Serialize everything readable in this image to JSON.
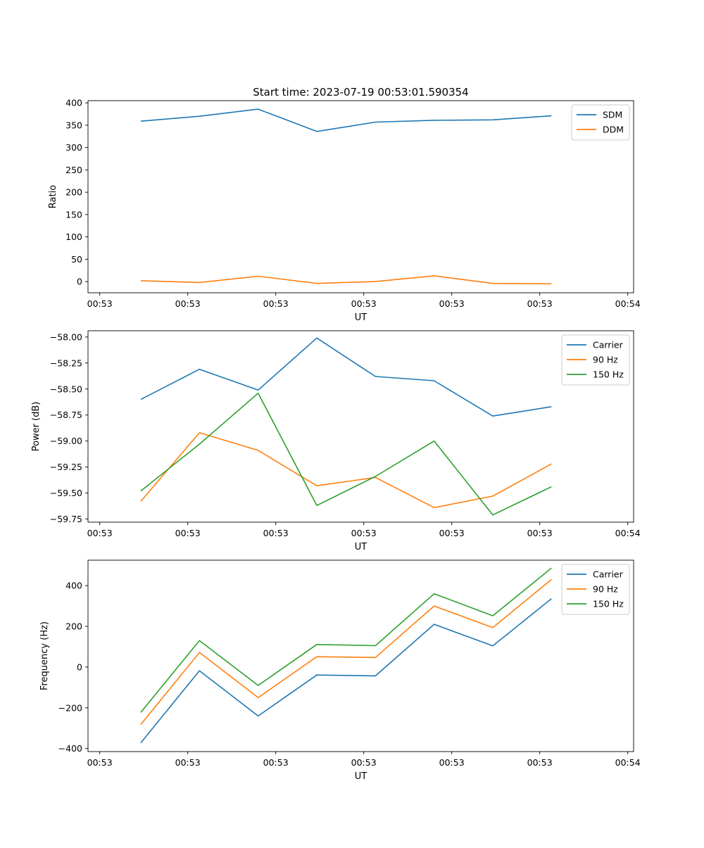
{
  "figure": {
    "title": "Start time: 2023-07-19 00:53:01.590354"
  },
  "chart_data": [
    {
      "type": "line",
      "title": "Start time: 2023-07-19 00:53:01.590354",
      "xlabel": "UT",
      "ylabel": "Ratio",
      "xlim": [
        -0.4,
        8.9
      ],
      "ylim": [
        -25,
        405
      ],
      "xticks": [
        -0.2,
        1.3,
        2.8,
        4.3,
        5.8,
        7.3,
        8.8
      ],
      "xtick_labels": [
        "00:53",
        "00:53",
        "00:53",
        "00:53",
        "00:53",
        "00:53",
        "00:54"
      ],
      "yticks": [
        0,
        50,
        100,
        150,
        200,
        250,
        300,
        350,
        400
      ],
      "ytick_labels": [
        "0",
        "50",
        "100",
        "150",
        "200",
        "250",
        "300",
        "350",
        "400"
      ],
      "x": [
        0.5,
        1.5,
        2.5,
        3.5,
        4.5,
        5.5,
        6.5,
        7.5
      ],
      "legend": "top-right",
      "series": [
        {
          "name": "SDM",
          "color": "#1f77b4",
          "values": [
            359,
            370,
            386,
            336,
            357,
            361,
            362,
            371
          ]
        },
        {
          "name": "DDM",
          "color": "#ff7f0e",
          "values": [
            2,
            -2,
            12,
            -4,
            0,
            13,
            -4,
            -5
          ]
        }
      ]
    },
    {
      "type": "line",
      "xlabel": "UT",
      "ylabel": "Power (dB)",
      "xlim": [
        -0.4,
        8.9
      ],
      "ylim": [
        -59.78,
        -57.94
      ],
      "xticks": [
        -0.2,
        1.3,
        2.8,
        4.3,
        5.8,
        7.3,
        8.8
      ],
      "xtick_labels": [
        "00:53",
        "00:53",
        "00:53",
        "00:53",
        "00:53",
        "00:53",
        "00:54"
      ],
      "yticks": [
        -59.75,
        -59.5,
        -59.25,
        -59.0,
        -58.75,
        -58.5,
        -58.25,
        -58.0
      ],
      "ytick_labels": [
        "−59.75",
        "−59.50",
        "−59.25",
        "−59.00",
        "−58.75",
        "−58.50",
        "−58.25",
        "−58.00"
      ],
      "x": [
        0.5,
        1.5,
        2.5,
        3.5,
        4.5,
        5.5,
        6.5,
        7.5
      ],
      "legend": "top-right",
      "series": [
        {
          "name": "Carrier",
          "color": "#1f77b4",
          "values": [
            -58.6,
            -58.31,
            -58.51,
            -58.01,
            -58.38,
            -58.42,
            -58.76,
            -58.67
          ]
        },
        {
          "name": "90 Hz",
          "color": "#ff7f0e",
          "values": [
            -59.58,
            -58.92,
            -59.09,
            -59.43,
            -59.35,
            -59.64,
            -59.53,
            -59.22
          ]
        },
        {
          "name": "150 Hz",
          "color": "#2ca02c",
          "values": [
            -59.48,
            -59.03,
            -58.54,
            -59.62,
            -59.34,
            -59.0,
            -59.71,
            -59.44
          ]
        }
      ]
    },
    {
      "type": "line",
      "xlabel": "UT",
      "ylabel": "Frequency (Hz)",
      "xlim": [
        -0.4,
        8.9
      ],
      "ylim": [
        -415,
        525
      ],
      "xticks": [
        -0.2,
        1.3,
        2.8,
        4.3,
        5.8,
        7.3,
        8.8
      ],
      "xtick_labels": [
        "00:53",
        "00:53",
        "00:53",
        "00:53",
        "00:53",
        "00:53",
        "00:54"
      ],
      "yticks": [
        -400,
        -200,
        0,
        200,
        400
      ],
      "ytick_labels": [
        "−400",
        "−200",
        "0",
        "200",
        "400"
      ],
      "x": [
        0.5,
        1.5,
        2.5,
        3.5,
        4.5,
        5.5,
        6.5,
        7.5
      ],
      "legend": "top-right",
      "series": [
        {
          "name": "Carrier",
          "color": "#1f77b4",
          "values": [
            -372,
            -18,
            -240,
            -39,
            -43,
            210,
            104,
            336
          ]
        },
        {
          "name": "90 Hz",
          "color": "#ff7f0e",
          "values": [
            -282,
            72,
            -150,
            51,
            47,
            300,
            194,
            430
          ]
        },
        {
          "name": "150 Hz",
          "color": "#2ca02c",
          "values": [
            -222,
            130,
            -90,
            111,
            105,
            360,
            252,
            486
          ]
        }
      ]
    }
  ]
}
